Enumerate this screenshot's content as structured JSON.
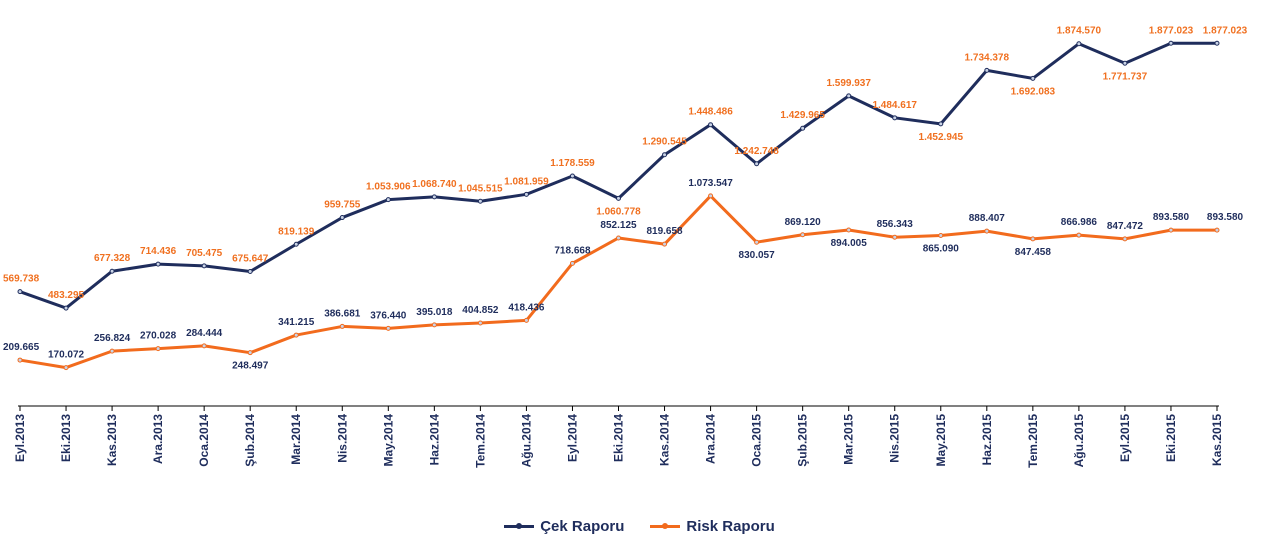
{
  "chart_data": {
    "type": "line",
    "categories": [
      "Eyl.2013",
      "Eki.2013",
      "Kas.2013",
      "Ara.2013",
      "Oca.2014",
      "Şub.2014",
      "Mar.2014",
      "Nis.2014",
      "May.2014",
      "Haz.2014",
      "Tem.2014",
      "Ağu.2014",
      "Eyl.2014",
      "Eki.2014",
      "Kas.2014",
      "Ara.2014",
      "Oca.2015",
      "Şub.2015",
      "Mar.2015",
      "Nis.2015",
      "May.2015",
      "Haz.2015",
      "Tem.2015",
      "Ağu.2015",
      "Eyl.2015",
      "Eki.2015",
      "Kas.2015"
    ],
    "series": [
      {
        "name": "Çek Raporu",
        "color": "#1f2d5c",
        "label_color": "#f07020",
        "values": [
          569738,
          483295,
          677328,
          714436,
          705475,
          675647,
          819139,
          959755,
          1053906,
          1068740,
          1045515,
          1081959,
          1178559,
          1060778,
          1290545,
          1448486,
          1242748,
          1429965,
          1599937,
          1484617,
          1452945,
          1734378,
          1692083,
          1874570,
          1771737,
          1877023,
          1877023
        ],
        "labels": [
          "569.738",
          "483.295",
          "677.328",
          "714.436",
          "705.475",
          "675.647",
          "819.139",
          "959.755",
          "1.053.906",
          "1.068.740",
          "1.045.515",
          "1.081.959",
          "1.178.559",
          "1.060.778",
          "1.290.545",
          "1.448.486",
          "1.242.748",
          "1.429.965",
          "1.599.937",
          "1.484.617",
          "1.452.945",
          "1.734.378",
          "1.692.083",
          "1.874.570",
          "1.771.737",
          "1.877.023",
          "1.877.023"
        ]
      },
      {
        "name": "Risk Raporu",
        "color": "#f26b1d",
        "label_color": "#1f2d5c",
        "values": [
          209665,
          170072,
          256824,
          270028,
          284444,
          248497,
          341215,
          386681,
          376440,
          395018,
          404852,
          418436,
          718668,
          852125,
          819658,
          1073547,
          830057,
          869120,
          894005,
          856343,
          865090,
          888407,
          847458,
          866986,
          847472,
          893580,
          893580
        ],
        "labels": [
          "209.665",
          "170.072",
          "256.824",
          "270.028",
          "284.444",
          "248.497",
          "341.215",
          "386.681",
          "376.440",
          "395.018",
          "404.852",
          "418.436",
          "718.668",
          "852.125",
          "819.658",
          "1.073.547",
          "830.057",
          "869.120",
          "894.005",
          "856.343",
          "865.090",
          "888.407",
          "847.458",
          "866.986",
          "847.472",
          "893.580",
          "893.580"
        ]
      }
    ]
  }
}
